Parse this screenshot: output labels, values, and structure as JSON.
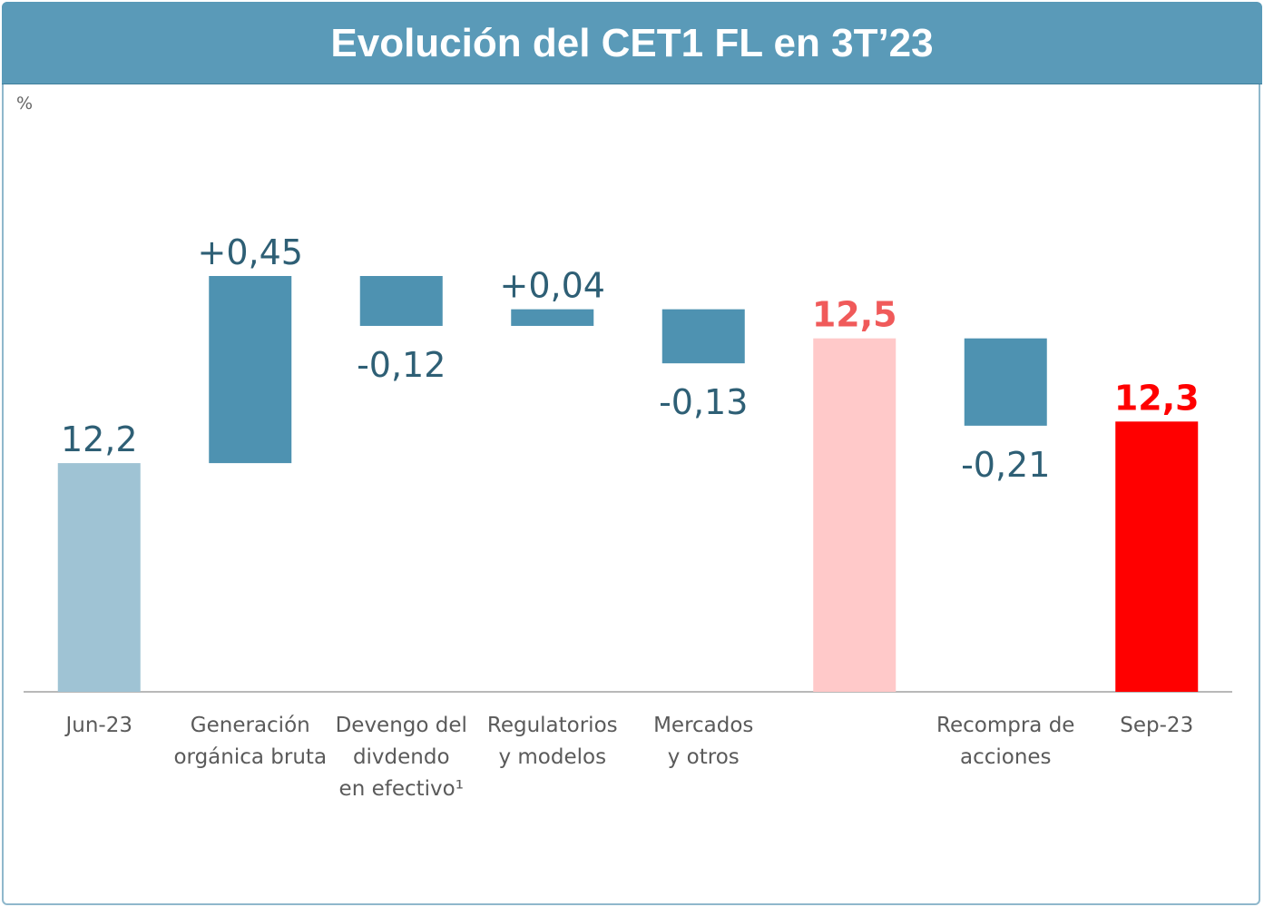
{
  "chart_data": {
    "type": "waterfall",
    "title": "Evolución del CET1 FL en 3T’23",
    "ylabel": "%",
    "categories": [
      "Jun-23",
      "Generación\norgánica bruta",
      "Devengo del\ndivdendo\nen efectivo¹",
      "Regulatorios\ny modelos",
      "Mercados\ny otros",
      null,
      "Recompra de\nacciones",
      "Sep-23"
    ],
    "measure": [
      "absolute",
      "relative",
      "relative",
      "relative",
      "relative",
      "absolute",
      "relative",
      "absolute"
    ],
    "values": [
      12.2,
      0.45,
      -0.12,
      0.04,
      -0.13,
      12.5,
      -0.21,
      12.3
    ],
    "value_labels": [
      "12,2",
      "+0,45",
      "-0,12",
      "+0,04",
      "-0,13",
      "12,5",
      "-0,21",
      "12,3"
    ],
    "colors": [
      "#9fc3d4",
      "#4e92b1",
      "#4e92b1",
      "#4e92b1",
      "#4e92b1",
      "#ffc9c9",
      "#4e92b1",
      "#ff0000"
    ],
    "label_colors": [
      "#2e5f75",
      "#2e5f75",
      "#2e5f75",
      "#2e5f75",
      "#2e5f75",
      "#f05a5a",
      "#2e5f75",
      "#ff0000"
    ],
    "label_weights": [
      400,
      400,
      400,
      400,
      400,
      700,
      400,
      700
    ],
    "ylim": [
      11.65,
      12.9
    ]
  }
}
